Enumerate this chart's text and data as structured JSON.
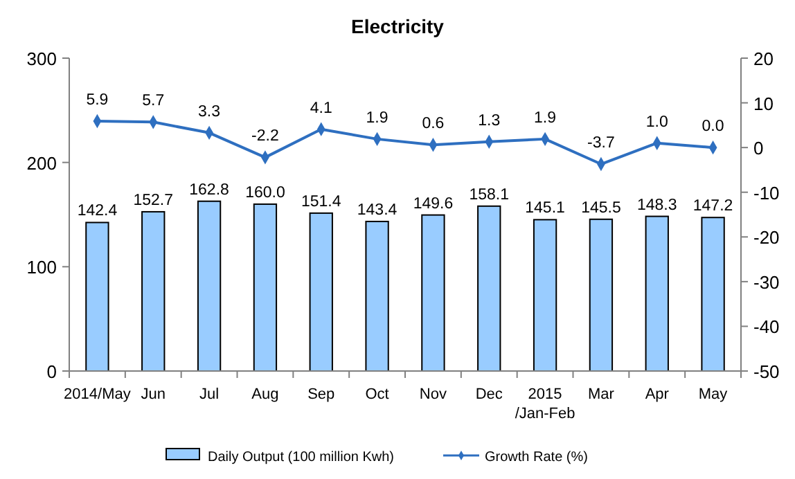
{
  "chart_data": {
    "type": "bar",
    "title": "Electricity",
    "categories": [
      "2014/May",
      "Jun",
      "Jul",
      "Aug",
      "Sep",
      "Oct",
      "Nov",
      "Dec",
      "2015\n/Jan-Feb",
      "Mar",
      "Apr",
      "May"
    ],
    "series": [
      {
        "name": "Daily Output (100 million Kwh)",
        "color": "#99ccff",
        "values": [
          142.4,
          152.7,
          162.8,
          160.0,
          151.4,
          143.4,
          149.6,
          158.1,
          145.1,
          145.5,
          148.3,
          147.2
        ],
        "value_labels": [
          "142.4",
          "152.7",
          "162.8",
          "160.0",
          "151.4",
          "143.4",
          "149.6",
          "158.1",
          "145.1",
          "145.5",
          "148.3",
          "147.2"
        ]
      },
      {
        "name": "Growth Rate (%)",
        "type": "line",
        "axis": "y2",
        "color": "#2e6fc0",
        "marker": "diamond",
        "values": [
          5.9,
          5.7,
          3.3,
          -2.2,
          4.1,
          1.9,
          0.6,
          1.3,
          1.9,
          -3.7,
          1.0,
          0.0
        ],
        "value_labels": [
          "5.9",
          "5.7",
          "3.3",
          "-2.2",
          "4.1",
          "1.9",
          "0.6",
          "1.3",
          "1.9",
          "-3.7",
          "1.0",
          "0.0"
        ]
      }
    ],
    "ylim": [
      0,
      300
    ],
    "yticks": [
      0,
      100,
      200,
      300
    ],
    "y2lim": [
      -50,
      20
    ],
    "y2ticks": [
      -50,
      -40,
      -30,
      -20,
      -10,
      0,
      10,
      20
    ],
    "legend": "bottom",
    "grid": false
  }
}
